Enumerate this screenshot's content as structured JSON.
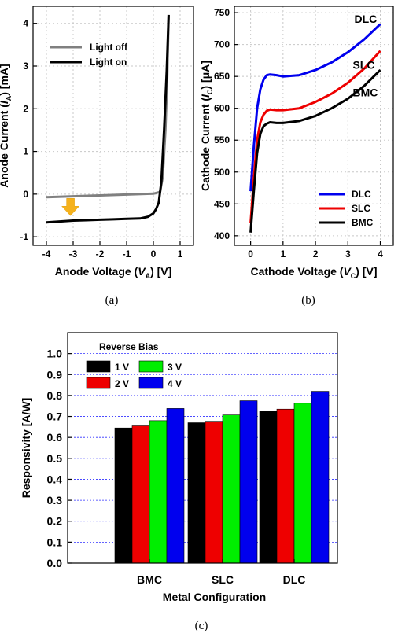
{
  "chart_data": [
    {
      "id": "a",
      "type": "line",
      "caption": "(a)",
      "xlabel_parts": [
        "Anode Voltage (",
        "V",
        "A",
        ") [V]"
      ],
      "ylabel_parts": [
        "Anode Current (",
        "I",
        "A",
        ") [mA]"
      ],
      "xlim": [
        -4.5,
        1.5
      ],
      "ylim": [
        -1.2,
        4.4
      ],
      "xticks": [
        -4,
        -3,
        -2,
        -1,
        0,
        1
      ],
      "yticks": [
        -1,
        0,
        1,
        2,
        3,
        4
      ],
      "grid": true,
      "legend_position": "top-left",
      "annotation": "yellow down arrow near V=-3.1, I=-0.3",
      "series": [
        {
          "name": "Light off",
          "color": "#808080",
          "x": [
            -4,
            -3,
            -2,
            -1,
            0,
            0.25,
            0.35,
            0.45,
            0.52,
            0.57
          ],
          "y": [
            -0.07,
            -0.05,
            -0.03,
            -0.01,
            0.01,
            0.05,
            0.4,
            1.5,
            2.8,
            4.2
          ]
        },
        {
          "name": "Light on",
          "color": "#000000",
          "x": [
            -4,
            -3.5,
            -3,
            -2.5,
            -2,
            -1.5,
            -1,
            -0.5,
            -0.2,
            0,
            0.1,
            0.2,
            0.3,
            0.4,
            0.5,
            0.57
          ],
          "y": [
            -0.66,
            -0.64,
            -0.62,
            -0.61,
            -0.6,
            -0.59,
            -0.58,
            -0.57,
            -0.53,
            -0.45,
            -0.35,
            -0.2,
            0.3,
            1.5,
            2.9,
            4.2
          ]
        }
      ]
    },
    {
      "id": "b",
      "type": "line",
      "caption": "(b)",
      "xlabel_parts": [
        "Cathode Voltage (",
        "V",
        "C",
        ") [V]"
      ],
      "ylabel_parts": [
        "Cathode Current (",
        "I",
        "C",
        ") [μA]"
      ],
      "xlim": [
        -0.5,
        4.4
      ],
      "ylim": [
        385,
        760
      ],
      "xticks": [
        0,
        1,
        2,
        3,
        4
      ],
      "yticks": [
        400,
        450,
        500,
        550,
        600,
        650,
        700,
        750
      ],
      "grid": true,
      "legend_position": "bottom-right",
      "labels": [
        {
          "text": "DLC",
          "x": 3.2,
          "y": 740
        },
        {
          "text": "SLC",
          "x": 3.15,
          "y": 668
        },
        {
          "text": "BMC",
          "x": 3.15,
          "y": 625
        }
      ],
      "series": [
        {
          "name": "DLC",
          "color": "#0000ee",
          "x": [
            0,
            0.1,
            0.2,
            0.3,
            0.4,
            0.5,
            0.6,
            0.8,
            1,
            1.5,
            2,
            2.5,
            3,
            3.5,
            4
          ],
          "y": [
            470,
            540,
            600,
            630,
            645,
            652,
            653,
            652,
            650,
            652,
            660,
            672,
            688,
            708,
            732
          ]
        },
        {
          "name": "SLC",
          "color": "#ee0000",
          "x": [
            0,
            0.1,
            0.2,
            0.3,
            0.4,
            0.5,
            0.6,
            0.8,
            1,
            1.5,
            2,
            2.5,
            3,
            3.5,
            4
          ],
          "y": [
            420,
            490,
            550,
            578,
            590,
            596,
            598,
            597,
            597,
            600,
            610,
            623,
            640,
            662,
            690
          ]
        },
        {
          "name": "BMC",
          "color": "#000000",
          "x": [
            0,
            0.1,
            0.2,
            0.3,
            0.4,
            0.5,
            0.6,
            0.8,
            1,
            1.5,
            2,
            2.5,
            3,
            3.5,
            4
          ],
          "y": [
            405,
            470,
            530,
            560,
            572,
            576,
            578,
            577,
            577,
            580,
            588,
            600,
            615,
            635,
            660
          ]
        }
      ]
    },
    {
      "id": "c",
      "type": "bar",
      "caption": "(c)",
      "xlabel": "Metal Configuration",
      "ylabel": "Responsivity [A/W]",
      "ylim": [
        0,
        1.1
      ],
      "yticks": [
        0.0,
        0.1,
        0.2,
        0.3,
        0.4,
        0.5,
        0.6,
        0.7,
        0.8,
        0.9,
        1.0
      ],
      "yticklabels": [
        "0.0",
        "0.1",
        "0.2",
        "0.3",
        "0.4",
        "0.5",
        "0.6",
        "0.7",
        "0.8",
        "0.9",
        "1.0"
      ],
      "grid": true,
      "legend_title": "Reverse Bias",
      "legend_position": "top-left",
      "categories": [
        "BMC",
        "SLC",
        "DLC"
      ],
      "series": [
        {
          "name": "1 V",
          "color": "#000000",
          "values": [
            0.645,
            0.67,
            0.727
          ]
        },
        {
          "name": "2 V",
          "color": "#ee0000",
          "values": [
            0.655,
            0.677,
            0.735
          ]
        },
        {
          "name": "3 V",
          "color": "#00ee00",
          "values": [
            0.68,
            0.707,
            0.763
          ]
        },
        {
          "name": "4 V",
          "color": "#0000ee",
          "values": [
            0.738,
            0.775,
            0.82
          ]
        }
      ]
    }
  ]
}
